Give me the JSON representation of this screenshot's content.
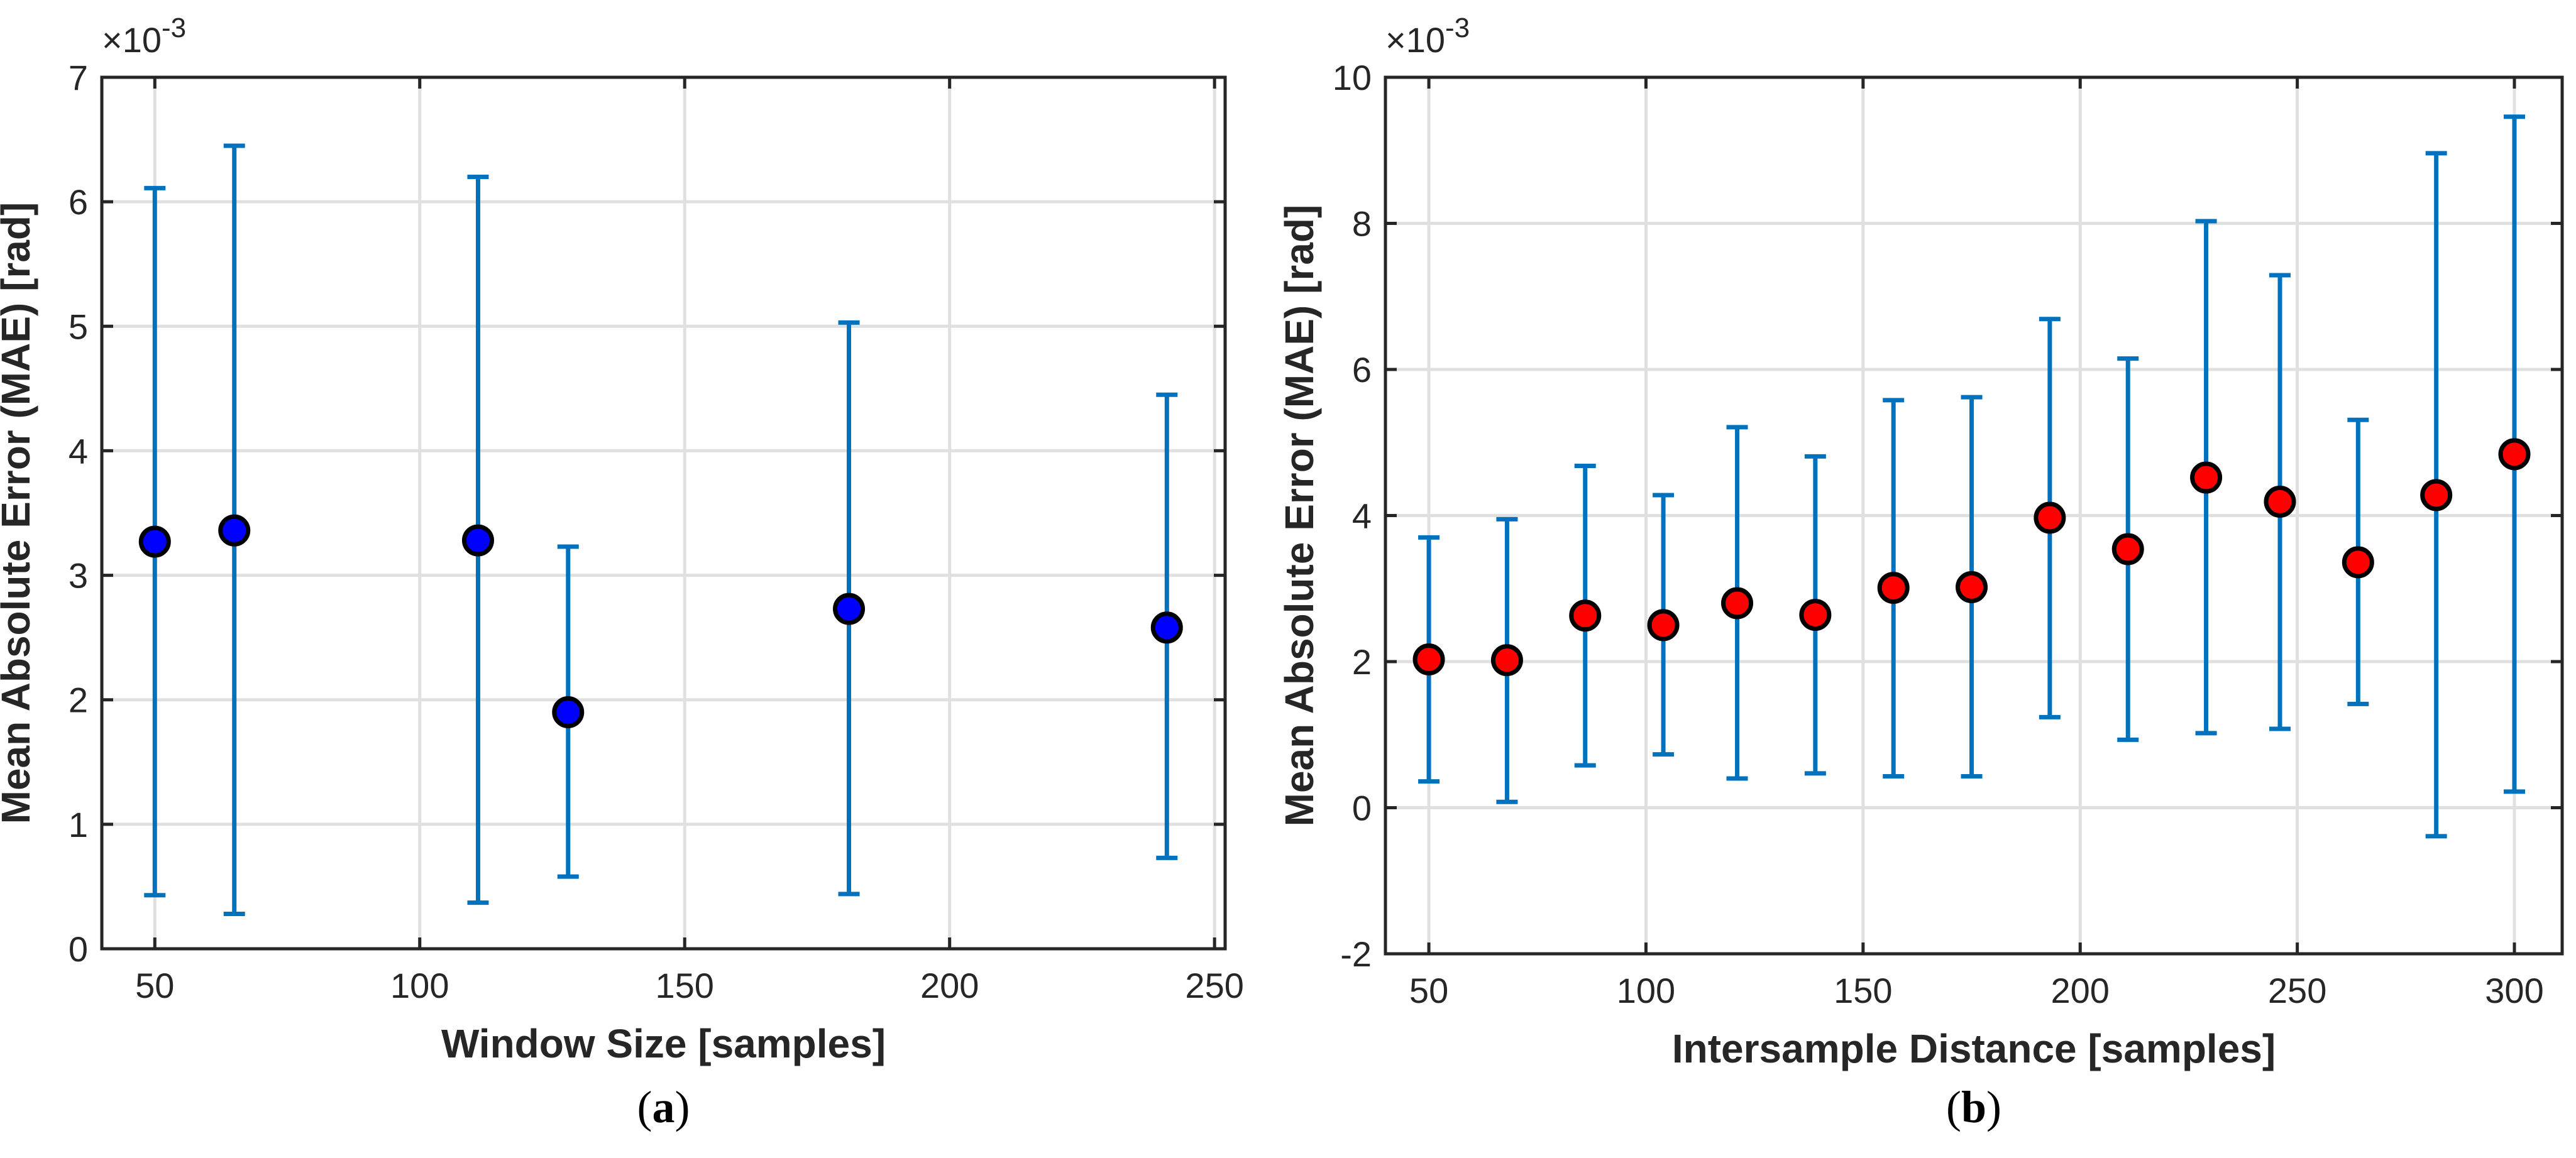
{
  "chart_data": [
    {
      "type": "scatter",
      "subplot_label": "a",
      "caption": {
        "open": "(",
        "label": "a",
        "close": ")"
      },
      "xlabel": "Window Size [samples]",
      "ylabel": "Mean Absolute Error (MAE) [rad]",
      "y_multiplier": {
        "base": "×10",
        "exponent": "-3"
      },
      "xlim": [
        40,
        252
      ],
      "ylim": [
        0,
        7
      ],
      "xticks": [
        50,
        100,
        150,
        200,
        250
      ],
      "yticks": [
        0,
        1,
        2,
        3,
        4,
        5,
        6,
        7
      ],
      "grid": true,
      "marker_color": "#0000ff",
      "errorbar_color": "#0072bd",
      "points": [
        {
          "x": 50,
          "y": 3.27,
          "lower": 0.43,
          "upper": 6.11
        },
        {
          "x": 65,
          "y": 3.36,
          "lower": 0.28,
          "upper": 6.45
        },
        {
          "x": 111,
          "y": 3.28,
          "lower": 0.37,
          "upper": 6.2
        },
        {
          "x": 128,
          "y": 1.9,
          "lower": 0.58,
          "upper": 3.23
        },
        {
          "x": 181,
          "y": 2.73,
          "lower": 0.44,
          "upper": 5.03
        },
        {
          "x": 241,
          "y": 2.58,
          "lower": 0.73,
          "upper": 4.45
        }
      ]
    },
    {
      "type": "scatter",
      "subplot_label": "b",
      "caption": {
        "open": "(",
        "label": "b",
        "close": ")"
      },
      "xlabel": "Intersample Distance [samples]",
      "ylabel": "Mean Absolute Error (MAE) [rad]",
      "y_multiplier": {
        "base": "×10",
        "exponent": "-3"
      },
      "xlim": [
        40,
        311
      ],
      "ylim": [
        -2,
        10
      ],
      "xticks": [
        50,
        100,
        150,
        200,
        250,
        300
      ],
      "yticks": [
        -2,
        0,
        2,
        4,
        6,
        8,
        10
      ],
      "grid": true,
      "marker_color": "#ff0000",
      "errorbar_color": "#0072bd",
      "points": [
        {
          "x": 50,
          "y": 2.03,
          "lower": 0.36,
          "upper": 3.7
        },
        {
          "x": 68,
          "y": 2.02,
          "lower": 0.08,
          "upper": 3.95
        },
        {
          "x": 86,
          "y": 2.63,
          "lower": 0.58,
          "upper": 4.68
        },
        {
          "x": 104,
          "y": 2.5,
          "lower": 0.73,
          "upper": 4.28
        },
        {
          "x": 121,
          "y": 2.8,
          "lower": 0.4,
          "upper": 5.21
        },
        {
          "x": 139,
          "y": 2.64,
          "lower": 0.47,
          "upper": 4.81
        },
        {
          "x": 157,
          "y": 3.01,
          "lower": 0.43,
          "upper": 5.58
        },
        {
          "x": 175,
          "y": 3.02,
          "lower": 0.43,
          "upper": 5.62
        },
        {
          "x": 193,
          "y": 3.97,
          "lower": 1.24,
          "upper": 6.69
        },
        {
          "x": 211,
          "y": 3.54,
          "lower": 0.93,
          "upper": 6.15
        },
        {
          "x": 229,
          "y": 4.52,
          "lower": 1.02,
          "upper": 8.03
        },
        {
          "x": 246,
          "y": 4.19,
          "lower": 1.08,
          "upper": 7.29
        },
        {
          "x": 264,
          "y": 3.36,
          "lower": 1.42,
          "upper": 5.31
        },
        {
          "x": 282,
          "y": 4.28,
          "lower": -0.39,
          "upper": 8.96
        },
        {
          "x": 300,
          "y": 4.84,
          "lower": 0.22,
          "upper": 9.46
        }
      ]
    }
  ]
}
